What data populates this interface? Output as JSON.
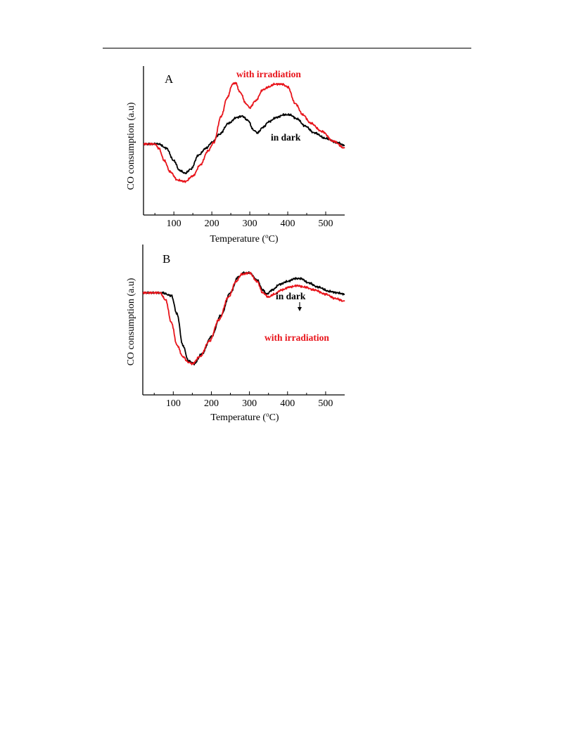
{
  "chart_data": [
    {
      "type": "line",
      "panel_label": "A",
      "xlabel": "Temperature (",
      "xlabel_unit": "C)",
      "ylabel": "CO consumption (a.u)",
      "xlim": [
        20,
        550
      ],
      "ylim": [
        0,
        100
      ],
      "x_ticks": [
        100,
        200,
        300,
        400,
        500
      ],
      "grid": false,
      "series": [
        {
          "name": "in dark",
          "color": "#000000",
          "points": [
            [
              20,
              45
            ],
            [
              60,
              45
            ],
            [
              80,
              42
            ],
            [
              100,
              33
            ],
            [
              115,
              26
            ],
            [
              130,
              24
            ],
            [
              145,
              27
            ],
            [
              165,
              37
            ],
            [
              185,
              42
            ],
            [
              200,
              46
            ],
            [
              220,
              52
            ],
            [
              245,
              60
            ],
            [
              265,
              64
            ],
            [
              280,
              65
            ],
            [
              295,
              62
            ],
            [
              310,
              55
            ],
            [
              320,
              53
            ],
            [
              335,
              57
            ],
            [
              350,
              61
            ],
            [
              370,
              64
            ],
            [
              390,
              66
            ],
            [
              405,
              66
            ],
            [
              425,
              63
            ],
            [
              445,
              58
            ],
            [
              470,
              53
            ],
            [
              500,
              49
            ],
            [
              530,
              46
            ],
            [
              550,
              44
            ]
          ]
        },
        {
          "name": "with irradiation",
          "color": "#e8141b",
          "points": [
            [
              20,
              45
            ],
            [
              50,
              45
            ],
            [
              60,
              42
            ],
            [
              75,
              33
            ],
            [
              90,
              25
            ],
            [
              110,
              19
            ],
            [
              130,
              18
            ],
            [
              150,
              22
            ],
            [
              170,
              30
            ],
            [
              190,
              40
            ],
            [
              205,
              46
            ],
            [
              225,
              65
            ],
            [
              240,
              78
            ],
            [
              255,
              88
            ],
            [
              262,
              89
            ],
            [
              275,
              82
            ],
            [
              290,
              74
            ],
            [
              300,
              71
            ],
            [
              315,
              76
            ],
            [
              335,
              84
            ],
            [
              350,
              86
            ],
            [
              365,
              88
            ],
            [
              385,
              88
            ],
            [
              400,
              86
            ],
            [
              420,
              74
            ],
            [
              440,
              66
            ],
            [
              460,
              60
            ],
            [
              490,
              54
            ],
            [
              520,
              47
            ],
            [
              550,
              42
            ]
          ]
        }
      ],
      "annotations": [
        {
          "text": "with irradiation",
          "color": "#e8141b"
        },
        {
          "text": "in dark",
          "color": "#000000"
        }
      ]
    },
    {
      "type": "line",
      "panel_label": "B",
      "xlabel": "Temperature (",
      "xlabel_unit": "C)",
      "ylabel": "CO consumption (a.u)",
      "xlim": [
        20,
        550
      ],
      "ylim": [
        0,
        100
      ],
      "x_ticks": [
        100,
        200,
        300,
        400,
        500
      ],
      "grid": false,
      "series": [
        {
          "name": "in dark",
          "color": "#000000",
          "points": [
            [
              20,
              67
            ],
            [
              70,
              67
            ],
            [
              95,
              65
            ],
            [
              110,
              52
            ],
            [
              125,
              30
            ],
            [
              140,
              19
            ],
            [
              155,
              17
            ],
            [
              175,
              24
            ],
            [
              200,
              36
            ],
            [
              225,
              51
            ],
            [
              250,
              67
            ],
            [
              270,
              78
            ],
            [
              285,
              81
            ],
            [
              300,
              81
            ],
            [
              320,
              76
            ],
            [
              335,
              69
            ],
            [
              345,
              66
            ],
            [
              360,
              69
            ],
            [
              380,
              73
            ],
            [
              400,
              75
            ],
            [
              420,
              77
            ],
            [
              435,
              77
            ],
            [
              455,
              74
            ],
            [
              480,
              71
            ],
            [
              510,
              68
            ],
            [
              530,
              67
            ],
            [
              550,
              66
            ]
          ]
        },
        {
          "name": "with irradiation",
          "color": "#e8141b",
          "points": [
            [
              20,
              67
            ],
            [
              65,
              67
            ],
            [
              80,
              62
            ],
            [
              95,
              46
            ],
            [
              110,
              30
            ],
            [
              125,
              22
            ],
            [
              140,
              18
            ],
            [
              150,
              17
            ],
            [
              170,
              22
            ],
            [
              195,
              33
            ],
            [
              220,
              48
            ],
            [
              245,
              64
            ],
            [
              265,
              75
            ],
            [
              280,
              80
            ],
            [
              300,
              81
            ],
            [
              320,
              75
            ],
            [
              335,
              67
            ],
            [
              350,
              64
            ],
            [
              365,
              66
            ],
            [
              385,
              69
            ],
            [
              405,
              71
            ],
            [
              425,
              72
            ],
            [
              445,
              71
            ],
            [
              470,
              69
            ],
            [
              500,
              66
            ],
            [
              525,
              63
            ],
            [
              550,
              61
            ]
          ]
        }
      ],
      "annotations": [
        {
          "text": "in dark",
          "color": "#000000"
        },
        {
          "text": "with irradiation",
          "color": "#e8141b"
        }
      ]
    }
  ]
}
